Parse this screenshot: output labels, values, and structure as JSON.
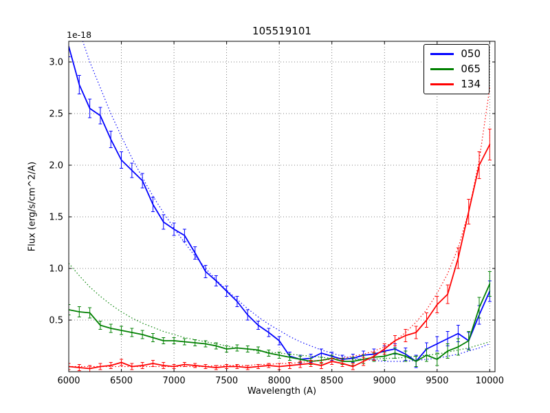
{
  "chart_data": {
    "type": "line",
    "title": "105519101",
    "xlabel": "Wavelength (A)",
    "ylabel": "Flux (erg/s/cm^2/A)",
    "y_offset_label": "1e-18",
    "xlim": [
      6000,
      10050
    ],
    "ylim": [
      0,
      3.2
    ],
    "xticks": [
      6000,
      6500,
      7000,
      7500,
      8000,
      8500,
      9000,
      9500,
      10000
    ],
    "yticks": [
      0.5,
      1.0,
      1.5,
      2.0,
      2.5,
      3.0
    ],
    "grid": true,
    "legend_position": "upper right",
    "x": [
      6000,
      6100,
      6200,
      6300,
      6400,
      6500,
      6600,
      6700,
      6800,
      6900,
      7000,
      7100,
      7200,
      7300,
      7400,
      7500,
      7600,
      7700,
      7800,
      7900,
      8000,
      8100,
      8200,
      8300,
      8400,
      8500,
      8600,
      8700,
      8800,
      8900,
      9000,
      9100,
      9200,
      9300,
      9400,
      9500,
      9600,
      9700,
      9800,
      9900,
      10000
    ],
    "series": [
      {
        "name": "050",
        "color": "#0000ff",
        "values": [
          3.15,
          2.78,
          2.55,
          2.48,
          2.25,
          2.05,
          1.95,
          1.85,
          1.62,
          1.45,
          1.38,
          1.32,
          1.15,
          0.97,
          0.88,
          0.78,
          0.68,
          0.55,
          0.45,
          0.38,
          0.3,
          0.15,
          0.12,
          0.13,
          0.18,
          0.15,
          0.12,
          0.13,
          0.16,
          0.17,
          0.2,
          0.22,
          0.17,
          0.1,
          0.22,
          0.27,
          0.32,
          0.37,
          0.3,
          0.55,
          0.78
        ],
        "errors": [
          0.1,
          0.09,
          0.09,
          0.08,
          0.08,
          0.08,
          0.07,
          0.07,
          0.07,
          0.07,
          0.06,
          0.06,
          0.06,
          0.06,
          0.05,
          0.05,
          0.05,
          0.05,
          0.04,
          0.04,
          0.04,
          0.04,
          0.04,
          0.04,
          0.04,
          0.04,
          0.04,
          0.04,
          0.04,
          0.05,
          0.05,
          0.05,
          0.06,
          0.06,
          0.06,
          0.07,
          0.07,
          0.08,
          0.08,
          0.09,
          0.1
        ],
        "fit": [
          3.6,
          3.3,
          3.0,
          2.75,
          2.5,
          2.28,
          2.07,
          1.88,
          1.7,
          1.54,
          1.39,
          1.25,
          1.12,
          1.0,
          0.89,
          0.79,
          0.7,
          0.61,
          0.53,
          0.46,
          0.4,
          0.34,
          0.29,
          0.25,
          0.21,
          0.18,
          0.15,
          0.13,
          0.12,
          0.11,
          0.1,
          0.1,
          0.1,
          0.11,
          0.12,
          0.13,
          0.15,
          0.17,
          0.2,
          0.23,
          0.27
        ]
      },
      {
        "name": "065",
        "color": "#008000",
        "values": [
          0.6,
          0.58,
          0.57,
          0.45,
          0.42,
          0.4,
          0.38,
          0.36,
          0.33,
          0.3,
          0.3,
          0.29,
          0.28,
          0.27,
          0.25,
          0.22,
          0.23,
          0.22,
          0.21,
          0.18,
          0.16,
          0.14,
          0.12,
          0.1,
          0.11,
          0.13,
          0.1,
          0.1,
          0.12,
          0.14,
          0.15,
          0.18,
          0.15,
          0.1,
          0.16,
          0.12,
          0.2,
          0.24,
          0.3,
          0.62,
          0.85
        ],
        "errors": [
          0.05,
          0.05,
          0.05,
          0.04,
          0.04,
          0.04,
          0.04,
          0.04,
          0.04,
          0.03,
          0.03,
          0.03,
          0.03,
          0.03,
          0.03,
          0.03,
          0.03,
          0.03,
          0.03,
          0.03,
          0.03,
          0.03,
          0.03,
          0.03,
          0.03,
          0.03,
          0.03,
          0.04,
          0.04,
          0.04,
          0.04,
          0.05,
          0.05,
          0.05,
          0.06,
          0.06,
          0.07,
          0.08,
          0.09,
          0.1,
          0.12
        ],
        "fit": [
          1.05,
          0.93,
          0.82,
          0.73,
          0.65,
          0.58,
          0.52,
          0.47,
          0.43,
          0.39,
          0.36,
          0.33,
          0.31,
          0.29,
          0.27,
          0.25,
          0.23,
          0.22,
          0.2,
          0.19,
          0.18,
          0.17,
          0.16,
          0.15,
          0.14,
          0.13,
          0.13,
          0.12,
          0.12,
          0.12,
          0.13,
          0.13,
          0.14,
          0.15,
          0.16,
          0.17,
          0.19,
          0.21,
          0.23,
          0.26,
          0.29
        ]
      },
      {
        "name": "134",
        "color": "#ff0000",
        "values": [
          0.05,
          0.04,
          0.03,
          0.05,
          0.06,
          0.09,
          0.05,
          0.06,
          0.08,
          0.06,
          0.05,
          0.07,
          0.06,
          0.05,
          0.04,
          0.05,
          0.05,
          0.04,
          0.05,
          0.06,
          0.05,
          0.06,
          0.07,
          0.08,
          0.06,
          0.1,
          0.08,
          0.05,
          0.1,
          0.15,
          0.22,
          0.3,
          0.35,
          0.38,
          0.5,
          0.65,
          0.75,
          1.1,
          1.55,
          2.0,
          2.2
        ],
        "errors": [
          0.03,
          0.03,
          0.03,
          0.03,
          0.03,
          0.03,
          0.03,
          0.03,
          0.03,
          0.03,
          0.02,
          0.02,
          0.02,
          0.02,
          0.02,
          0.02,
          0.02,
          0.02,
          0.02,
          0.02,
          0.03,
          0.03,
          0.03,
          0.03,
          0.03,
          0.03,
          0.03,
          0.03,
          0.04,
          0.04,
          0.05,
          0.05,
          0.06,
          0.06,
          0.07,
          0.08,
          0.09,
          0.1,
          0.12,
          0.13,
          0.15
        ],
        "fit": [
          0.05,
          0.05,
          0.05,
          0.05,
          0.05,
          0.05,
          0.05,
          0.05,
          0.05,
          0.05,
          0.05,
          0.05,
          0.05,
          0.05,
          0.06,
          0.06,
          0.06,
          0.06,
          0.07,
          0.07,
          0.08,
          0.08,
          0.09,
          0.1,
          0.11,
          0.12,
          0.13,
          0.15,
          0.17,
          0.2,
          0.24,
          0.3,
          0.38,
          0.48,
          0.6,
          0.76,
          0.95,
          1.2,
          1.55,
          2.05,
          2.75
        ]
      }
    ]
  }
}
